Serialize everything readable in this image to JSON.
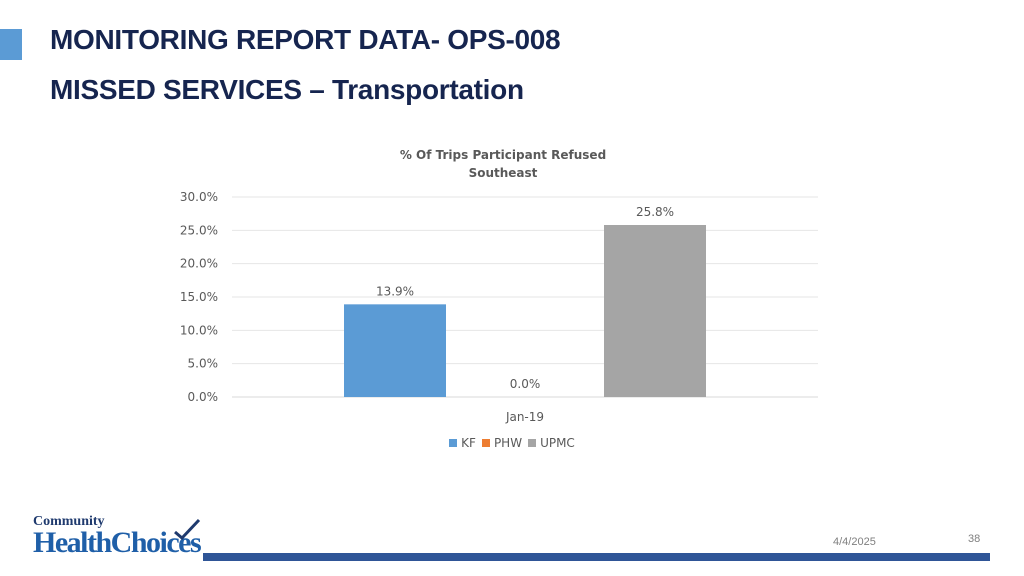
{
  "slide": {
    "title_line1": "MONITORING REPORT DATA- OPS-008",
    "title_line2": "MISSED SERVICES – Transportation",
    "date": "4/4/2025",
    "page_number": "38",
    "accent_color": "#5b9bd5",
    "footer_bar_color": "#2f5597",
    "logo": {
      "text_top": "Community",
      "text_main": "HealthChoices"
    }
  },
  "chart_data": {
    "type": "bar",
    "title": "% Of Trips Participant Refused",
    "subtitle": "Southeast",
    "categories": [
      "Jan-19"
    ],
    "series": [
      {
        "name": "KF",
        "values": [
          13.9
        ],
        "label": "13.9%",
        "color": "#5b9bd5"
      },
      {
        "name": "PHW",
        "values": [
          0.0
        ],
        "label": "0.0%",
        "color": "#ed7d31"
      },
      {
        "name": "UPMC",
        "values": [
          25.8
        ],
        "label": "25.8%",
        "color": "#a5a5a5"
      }
    ],
    "ylim": [
      0,
      30
    ],
    "y_ticks": [
      "0.0%",
      "5.0%",
      "10.0%",
      "15.0%",
      "20.0%",
      "25.0%",
      "30.0%"
    ],
    "grid": true,
    "legend": "bottom",
    "xlabel": "",
    "ylabel": ""
  }
}
